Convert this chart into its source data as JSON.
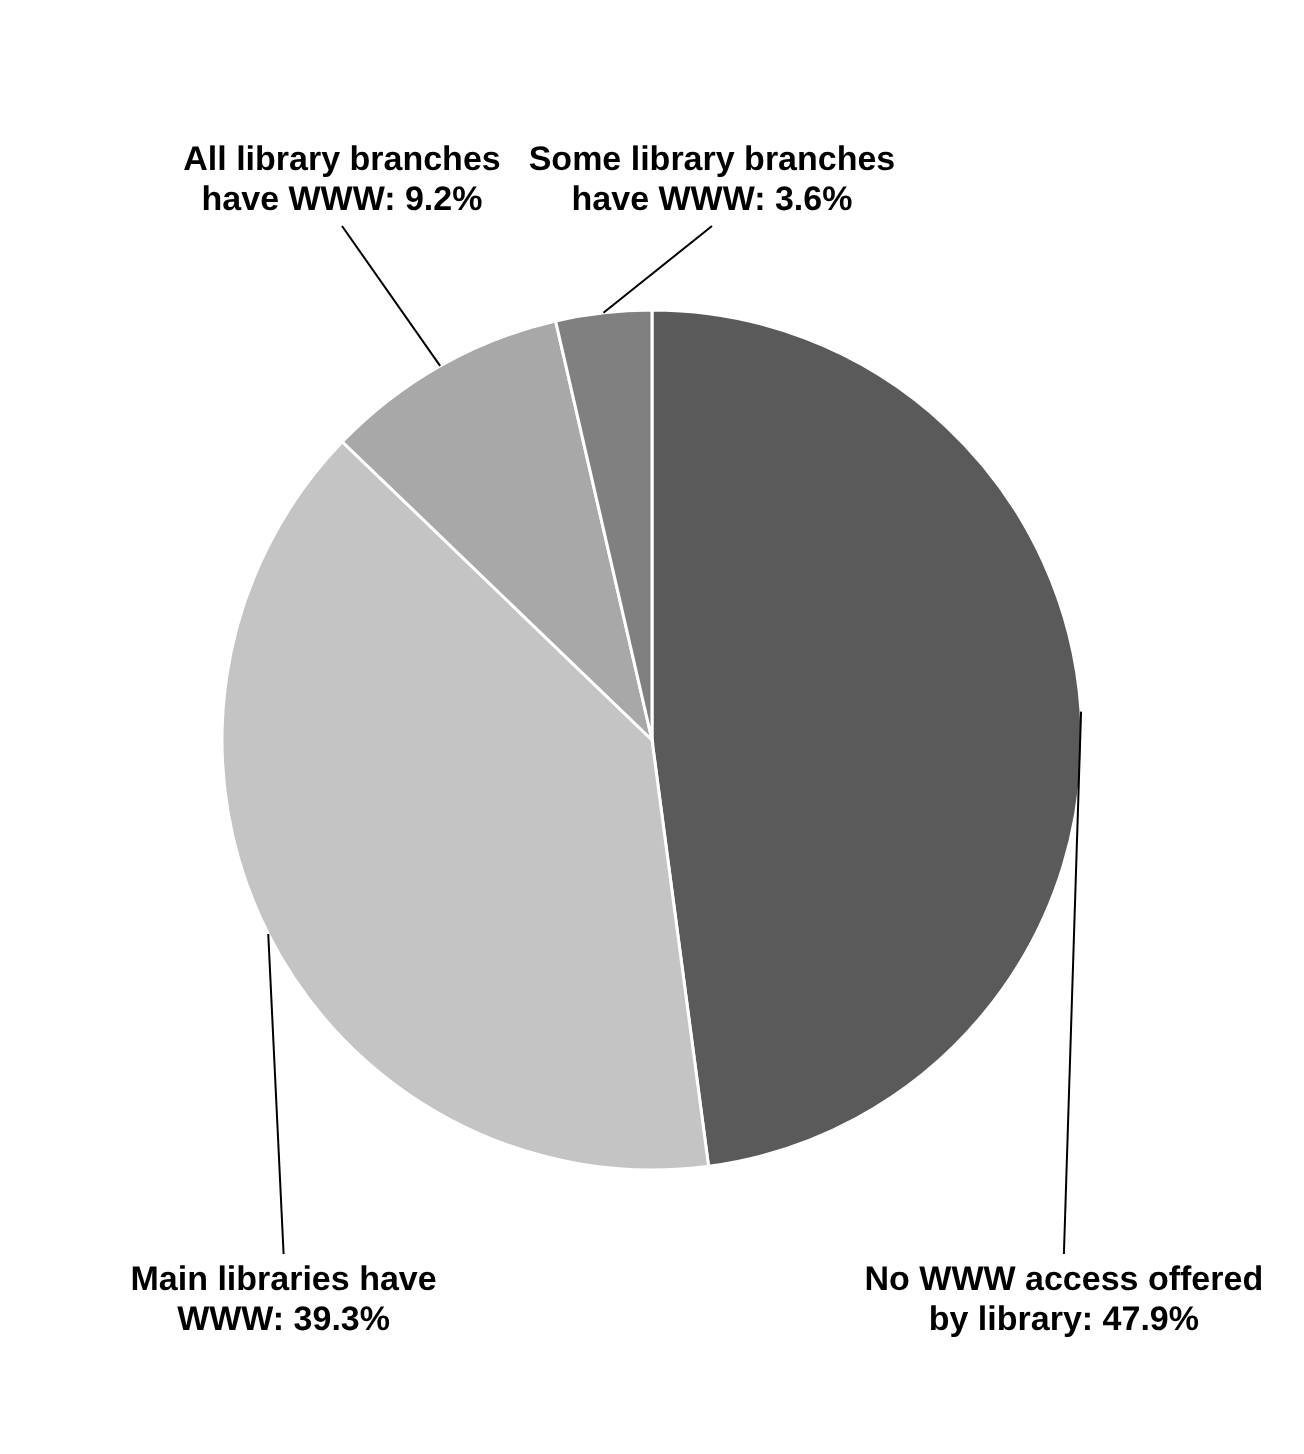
{
  "chart_data": {
    "type": "pie",
    "categories": [
      "No WWW access offered by library",
      "Main libraries have WWW",
      "All library branches have WWW",
      "Some library branches have WWW"
    ],
    "values": [
      47.9,
      39.3,
      9.2,
      3.6
    ],
    "colors": [
      "#5a5a5a",
      "#c4c4c4",
      "#a8a8a8",
      "#808080"
    ],
    "value_labels": [
      "47.9%",
      "39.3%",
      "9.2%",
      "3.6%"
    ]
  }
}
